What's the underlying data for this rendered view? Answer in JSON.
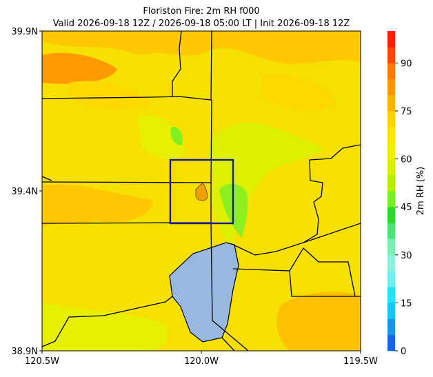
{
  "map": {
    "title": "Floriston Fire: 2m RH f000",
    "subtitle": "Valid 2026-09-18 12Z / 2026-09-18 05:00 LT | Init 2026-09-18 12Z",
    "xlim": [
      -120.5,
      -119.5
    ],
    "ylim": [
      38.9,
      39.9
    ],
    "xticks": [
      {
        "value": -120.5,
        "label": "120.5W"
      },
      {
        "value": -120.0,
        "label": "120.0W"
      },
      {
        "value": -119.5,
        "label": "119.5W"
      }
    ],
    "yticks": [
      {
        "value": 38.9,
        "label": "38.9N"
      },
      {
        "value": 39.4,
        "label": "39.4N"
      },
      {
        "value": 39.9,
        "label": "39.9N"
      }
    ],
    "colorbar": {
      "label": "2m RH (%)",
      "lim": [
        0,
        100
      ],
      "ticks": [
        0,
        15,
        30,
        45,
        60,
        75,
        90
      ],
      "levels": [
        0,
        5,
        10,
        15,
        20,
        25,
        30,
        35,
        40,
        45,
        50,
        55,
        60,
        65,
        70,
        75,
        80,
        85,
        90,
        95,
        100
      ],
      "colors": [
        "#1464e6",
        "#1496f0",
        "#14c8f5",
        "#1ee6f5",
        "#6ef0f0",
        "#8cf0dc",
        "#78f0b4",
        "#46e678",
        "#28dc28",
        "#78f01e",
        "#b4f000",
        "#d7f000",
        "#f0ef00",
        "#ffe600",
        "#ffd200",
        "#ffb400",
        "#ff9600",
        "#ff7800",
        "#ff4600",
        "#ff1e00"
      ]
    }
  }
}
